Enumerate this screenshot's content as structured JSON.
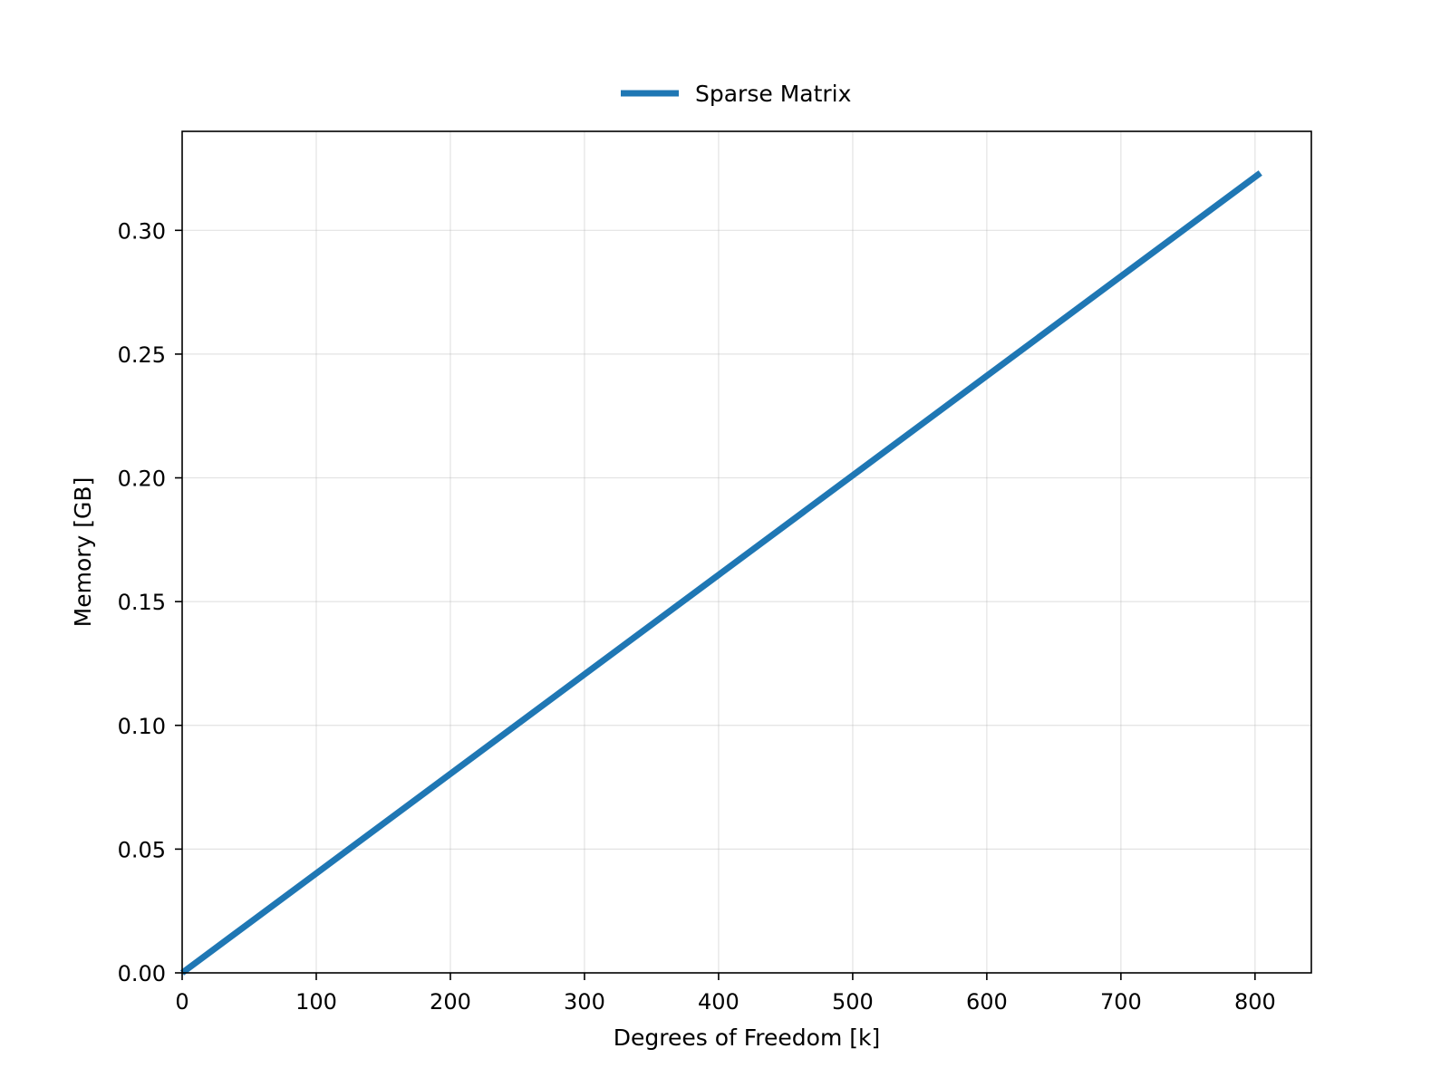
{
  "chart_data": {
    "type": "line",
    "title": "",
    "xlabel": "Degrees of Freedom [k]",
    "ylabel": "Memory [GB]",
    "xlim": [
      0,
      842
    ],
    "ylim": [
      0,
      0.34
    ],
    "xticks": [
      0,
      100,
      200,
      300,
      400,
      500,
      600,
      700,
      800
    ],
    "yticks": [
      0.0,
      0.05,
      0.1,
      0.15,
      0.2,
      0.25,
      0.3
    ],
    "xtick_labels": [
      "0",
      "100",
      "200",
      "300",
      "400",
      "500",
      "600",
      "700",
      "800"
    ],
    "ytick_labels": [
      "0.00",
      "0.05",
      "0.10",
      "0.15",
      "0.20",
      "0.25",
      "0.30"
    ],
    "grid": true,
    "legend": {
      "placement": "top-center",
      "entries": [
        "Sparse Matrix"
      ]
    },
    "series": [
      {
        "name": "Sparse Matrix",
        "color": "#1f77b4",
        "x": [
          0,
          100,
          200,
          300,
          400,
          500,
          600,
          700,
          804
        ],
        "y": [
          0.0,
          0.0402,
          0.0804,
          0.1206,
          0.1608,
          0.201,
          0.2412,
          0.2814,
          0.3232
        ]
      }
    ]
  }
}
